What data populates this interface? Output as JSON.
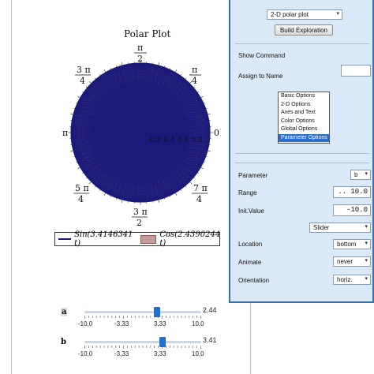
{
  "plot": {
    "title": "Polar Plot",
    "angle_labels": {
      "pi_over_2": {
        "num": "π",
        "den": "2"
      },
      "three_pi_over_4": {
        "num": "3 π",
        "den": "4"
      },
      "pi": "π",
      "zero": "0",
      "five_pi_over_4": {
        "num": "5 π",
        "den": "4"
      },
      "three_pi_over_2": {
        "num": "3 π",
        "den": "2"
      },
      "seven_pi_over_4": {
        "num": "7 π",
        "den": "4"
      },
      "pi_over_4": {
        "num": "π",
        "den": "4"
      }
    },
    "radial_ticks": [
      "0.2",
      "0.4",
      "0.6",
      "0.8"
    ],
    "legend": {
      "line": "Sin(3.4146341 t)",
      "fill": "Cos(2.4390244 t)"
    },
    "colors": {
      "line": "#1a1a7a",
      "fill": "#c79a9a"
    }
  },
  "chart_data": {
    "type": "polar",
    "title": "Polar Plot",
    "series": [
      {
        "name": "Sin(3.4146341 t)",
        "style": "line",
        "a": 3.4146341,
        "fn": "sin"
      },
      {
        "name": "Cos(2.4390244 t)",
        "style": "filled",
        "a": 2.4390244,
        "fn": "cos"
      }
    ],
    "r_ticks": [
      0.2,
      0.4,
      0.6,
      0.8
    ],
    "r_range": [
      0,
      1
    ],
    "legend_placement": "bottom"
  },
  "sliders": [
    {
      "name": "a",
      "value": "2.44",
      "value_num": 2.44,
      "min": -10,
      "max": 10,
      "ticks": [
        "-10,0",
        "-3,33",
        "3,33",
        "10,0"
      ]
    },
    {
      "name": "b",
      "value": "3.41",
      "value_num": 3.41,
      "min": -10,
      "max": 10,
      "ticks": [
        "-10,0",
        "-3,33",
        "3,33",
        "10,0"
      ]
    }
  ],
  "panel": {
    "plot_type": "2-D polar plot",
    "build_button": "Build Exploration",
    "show_command": "Show Command",
    "assign_to_name": "Assign to Name",
    "assign_value": "",
    "options_list": [
      "Basic Options",
      "2-D Options",
      "Axes and Text",
      "Color Options",
      "Global Options",
      "Parameter Options"
    ],
    "selected_option": "Parameter Options",
    "parameter_label": "Parameter",
    "parameter_value": "b",
    "range_label": "Range",
    "range_value": ".. 10.0",
    "init_label": "Init.Value",
    "init_value": "-10.0",
    "control_type": "Slider",
    "location_label": "Location",
    "location_value": "bottom",
    "animate_label": "Animate",
    "animate_value": "never",
    "orientation_label": "Orientation",
    "orientation_value": "horiz."
  }
}
